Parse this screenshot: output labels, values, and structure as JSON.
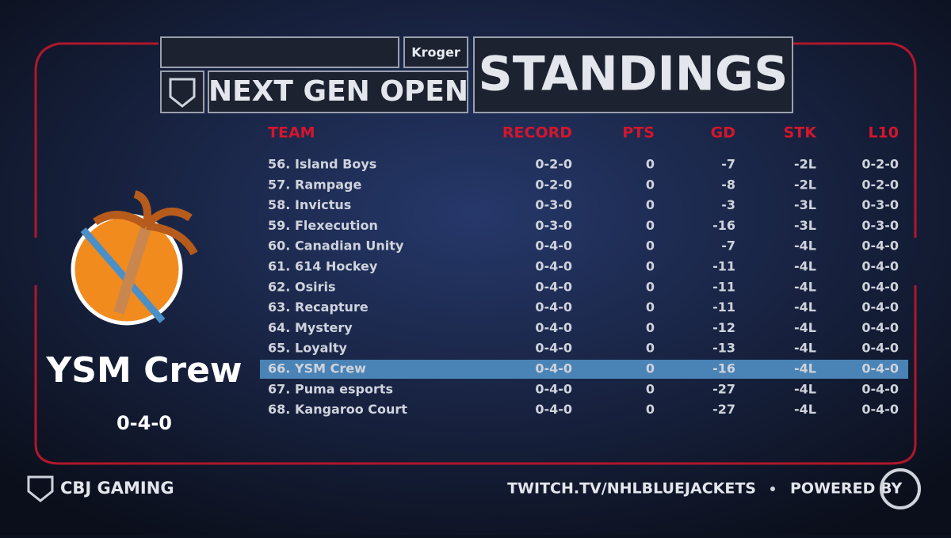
{
  "header": {
    "sponsor": "Kroger",
    "event": "NEXT GEN OPEN",
    "title": "STANDINGS"
  },
  "featured": {
    "team": "YSM Crew",
    "record": "0-4-0"
  },
  "table": {
    "columns": [
      "TEAM",
      "RECORD",
      "PTS",
      "GD",
      "STK",
      "L10"
    ],
    "highlight_row": 10,
    "rows": [
      {
        "rank": "56.",
        "team": "Island Boys",
        "record": "0-2-0",
        "pts": 0,
        "gd": -7,
        "stk": "-2L",
        "l10": "0-2-0"
      },
      {
        "rank": "57.",
        "team": "Rampage",
        "record": "0-2-0",
        "pts": 0,
        "gd": -8,
        "stk": "-2L",
        "l10": "0-2-0"
      },
      {
        "rank": "58.",
        "team": "Invictus",
        "record": "0-3-0",
        "pts": 0,
        "gd": -3,
        "stk": "-3L",
        "l10": "0-3-0"
      },
      {
        "rank": "59.",
        "team": "Flexecution",
        "record": "0-3-0",
        "pts": 0,
        "gd": -16,
        "stk": "-3L",
        "l10": "0-3-0"
      },
      {
        "rank": "60.",
        "team": "Canadian Unity",
        "record": "0-4-0",
        "pts": 0,
        "gd": -7,
        "stk": "-4L",
        "l10": "0-4-0"
      },
      {
        "rank": "61.",
        "team": "614 Hockey",
        "record": "0-4-0",
        "pts": 0,
        "gd": -11,
        "stk": "-4L",
        "l10": "0-4-0"
      },
      {
        "rank": "62.",
        "team": "Osiris",
        "record": "0-4-0",
        "pts": 0,
        "gd": -11,
        "stk": "-4L",
        "l10": "0-4-0"
      },
      {
        "rank": "63.",
        "team": "Recapture",
        "record": "0-4-0",
        "pts": 0,
        "gd": -11,
        "stk": "-4L",
        "l10": "0-4-0"
      },
      {
        "rank": "64.",
        "team": "Mystery",
        "record": "0-4-0",
        "pts": 0,
        "gd": -12,
        "stk": "-4L",
        "l10": "0-4-0"
      },
      {
        "rank": "65.",
        "team": "Loyalty",
        "record": "0-4-0",
        "pts": 0,
        "gd": -13,
        "stk": "-4L",
        "l10": "0-4-0"
      },
      {
        "rank": "66.",
        "team": "YSM Crew",
        "record": "0-4-0",
        "pts": 0,
        "gd": -16,
        "stk": "-4L",
        "l10": "0-4-0"
      },
      {
        "rank": "67.",
        "team": "Puma esports",
        "record": "0-4-0",
        "pts": 0,
        "gd": -27,
        "stk": "-4L",
        "l10": "0-4-0"
      },
      {
        "rank": "68.",
        "team": "Kangaroo Court",
        "record": "0-4-0",
        "pts": 0,
        "gd": -27,
        "stk": "-4L",
        "l10": "0-4-0"
      }
    ]
  },
  "footer": {
    "brand": "CBJ GAMING",
    "url": "TWITCH.TV/NHLBLUEJACKETS",
    "powered": "POWERED BY"
  }
}
